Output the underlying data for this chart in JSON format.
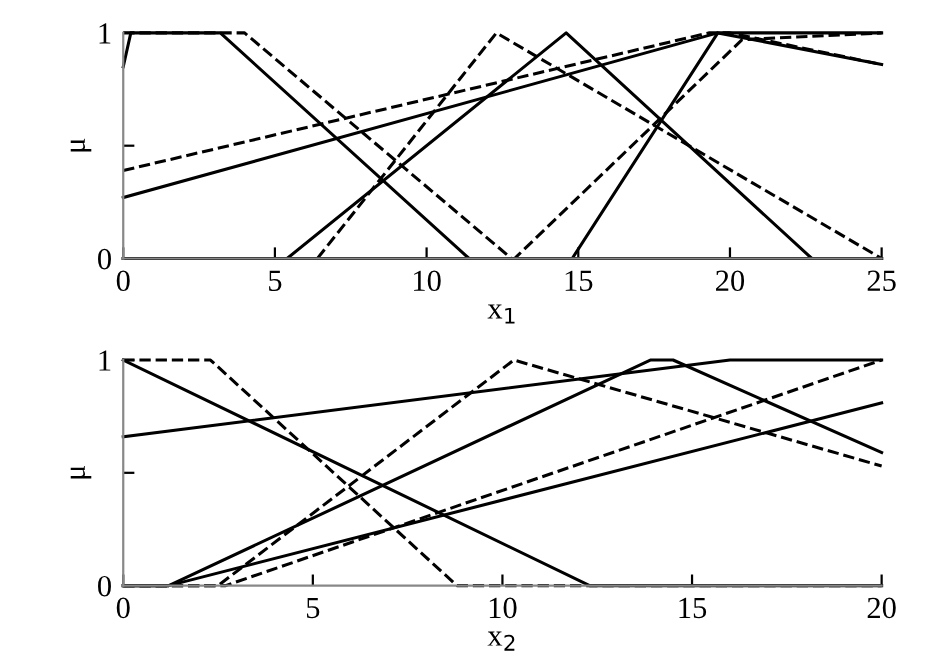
{
  "chart_data": [
    {
      "type": "line",
      "xlabel": "x$_{1}$",
      "ylabel": "μ",
      "xlim": [
        0,
        25
      ],
      "ylim": [
        0,
        1
      ],
      "xticks": [
        0,
        5,
        10,
        15,
        20,
        25
      ],
      "yticks": [
        0,
        {
          "value": 0.5,
          "label": null
        },
        1
      ],
      "grid": false,
      "legend": false,
      "marker": "none",
      "series": [
        {
          "color": "#000000",
          "line_style": "solid",
          "x": [
            0,
            0.25,
            3.2,
            11.4,
            25
          ],
          "values": [
            0.85,
            1,
            1,
            0,
            0
          ]
        },
        {
          "color": "#000000",
          "line_style": "dashed",
          "x": [
            0,
            4,
            12.8,
            25
          ],
          "values": [
            1,
            1,
            0,
            0
          ]
        },
        {
          "color": "#000000",
          "line_style": "solid",
          "x": [
            0,
            5.4,
            14.6,
            22.7,
            25
          ],
          "values": [
            0,
            0,
            1,
            0,
            0
          ]
        },
        {
          "color": "#000000",
          "line_style": "dashed",
          "x": [
            0,
            6.4,
            12.3,
            25
          ],
          "values": [
            0,
            0,
            1,
            0
          ]
        },
        {
          "color": "#000000",
          "line_style": "solid",
          "x": [
            0,
            19.6,
            25
          ],
          "values": [
            0.27,
            1,
            0.86
          ]
        },
        {
          "color": "#000000",
          "line_style": "solid",
          "x": [
            0,
            14.8,
            19.6,
            25
          ],
          "values": [
            0,
            0,
            1,
            1
          ]
        },
        {
          "color": "#000000",
          "line_style": "dashed",
          "x": [
            0,
            19.3,
            20,
            25
          ],
          "values": [
            0.39,
            1,
            1,
            0.86
          ]
        },
        {
          "color": "#000000",
          "line_style": "dashed",
          "x": [
            0,
            12.9,
            20.4,
            25
          ],
          "values": [
            0,
            0,
            0.97,
            1
          ]
        }
      ]
    },
    {
      "type": "line",
      "xlabel": "x$_{2}$",
      "ylabel": "μ",
      "xlim": [
        0,
        20
      ],
      "ylim": [
        0,
        1
      ],
      "xticks": [
        0,
        5,
        10,
        15,
        20
      ],
      "yticks": [
        0,
        {
          "value": 0.5,
          "label": null
        },
        1
      ],
      "grid": false,
      "legend": false,
      "marker": "none",
      "series": [
        {
          "color": "#000000",
          "line_style": "solid",
          "x": [
            0,
            12.3,
            20
          ],
          "values": [
            1,
            0,
            0
          ]
        },
        {
          "color": "#000000",
          "line_style": "dashed",
          "x": [
            0,
            2.3,
            8.8,
            20
          ],
          "values": [
            1,
            1,
            0,
            0
          ]
        },
        {
          "color": "#000000",
          "line_style": "solid",
          "x": [
            0,
            16,
            20
          ],
          "values": [
            0.66,
            1,
            1
          ]
        },
        {
          "color": "#000000",
          "line_style": "solid",
          "x": [
            0,
            1.2,
            13.9,
            14.5,
            20
          ],
          "values": [
            0,
            0,
            1,
            1,
            0.59
          ]
        },
        {
          "color": "#000000",
          "line_style": "dashed",
          "x": [
            0,
            2.5,
            10.3,
            20
          ],
          "values": [
            0,
            0,
            1,
            0.53
          ]
        },
        {
          "color": "#000000",
          "line_style": "solid",
          "x": [
            0,
            1.2,
            20
          ],
          "values": [
            0,
            0,
            0.81
          ]
        },
        {
          "color": "#000000",
          "line_style": "dashed",
          "x": [
            0,
            2.7,
            20
          ],
          "values": [
            0,
            0,
            1
          ]
        }
      ]
    }
  ]
}
